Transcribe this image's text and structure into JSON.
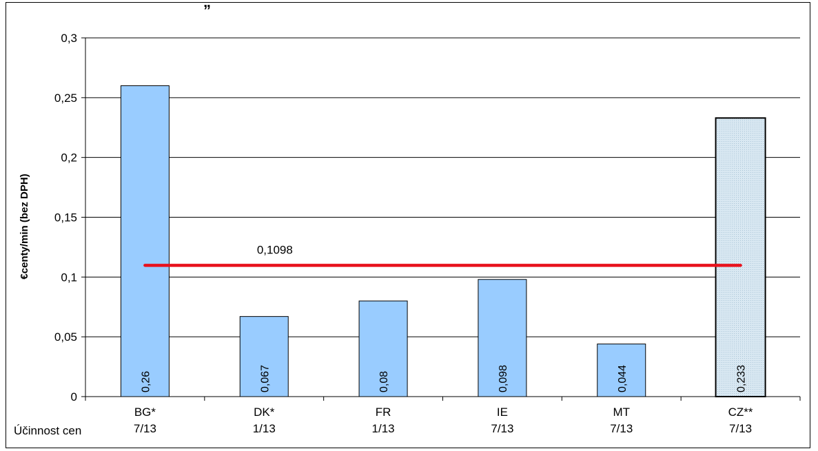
{
  "header_fragment": "„",
  "chart_data": {
    "type": "bar",
    "ylabel": "€centy/min (bez DPH)",
    "row_label": "Účinnost cen",
    "ylim": [
      0,
      0.3
    ],
    "yticks": [
      "0",
      "0,05",
      "0,1",
      "0,15",
      "0,2",
      "0,25",
      "0,3"
    ],
    "ytick_values": [
      0,
      0.05,
      0.1,
      0.15,
      0.2,
      0.25,
      0.3
    ],
    "categories": [
      "BG*",
      "DK*",
      "FR",
      "IE",
      "MT",
      "CZ**"
    ],
    "sublabels": [
      "7/13",
      "1/13",
      "1/13",
      "7/13",
      "7/13",
      "7/13"
    ],
    "values": [
      0.26,
      0.067,
      0.08,
      0.098,
      0.044,
      0.233
    ],
    "value_labels": [
      "0,26",
      "0,067",
      "0,08",
      "0,098",
      "0,044",
      "0,233"
    ],
    "highlighted_category": "CZ**",
    "average": {
      "value": 0.1098,
      "label": "0,1098"
    },
    "grid": true,
    "legend": "none",
    "colors": {
      "bar": "#99ccff",
      "highlight": "#d9e8f2",
      "average_line": "#e8111c",
      "grid": "#000000"
    }
  }
}
